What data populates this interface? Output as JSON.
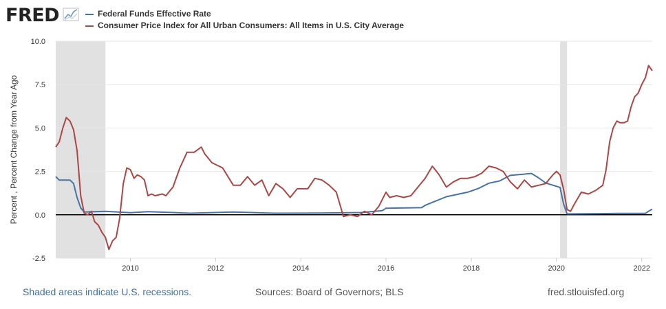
{
  "brand": {
    "logo_text": "FRED",
    "logo_icon": "chart-line-icon"
  },
  "footer": {
    "note": "Shaded areas indicate U.S. recessions.",
    "sources": "Sources: Board of Governors; BLS",
    "site": "fred.stlouisfed.org"
  },
  "colors": {
    "fedfunds": "#4572a7",
    "cpi": "#aa4643",
    "recession": "#e1e1e1",
    "grid": "#e6e6e6",
    "zero_line": "#000000"
  },
  "chart_data": {
    "type": "line",
    "ylabel": "Percent , Percent Change from Year Ago",
    "ylim": [
      -2.5,
      10.0
    ],
    "yticks": [
      "-2.5",
      "0.0",
      "2.5",
      "5.0",
      "7.5",
      "10.0"
    ],
    "xlim": [
      "2008-04-01",
      "2022-04-01"
    ],
    "xticks": [
      "2010",
      "2012",
      "2014",
      "2016",
      "2018",
      "2020",
      "2022"
    ],
    "grid": true,
    "legend": "top-left",
    "recessions": [
      [
        "2008-04-01",
        "2009-06-01"
      ],
      [
        "2020-02-01",
        "2020-04-01"
      ]
    ],
    "series": [
      {
        "name": "Federal Funds Effective Rate",
        "points": [
          [
            "2008-04-01",
            2.2
          ],
          [
            "2008-05-01",
            2.0
          ],
          [
            "2008-08-01",
            2.0
          ],
          [
            "2008-09-01",
            1.8
          ],
          [
            "2008-10-01",
            1.0
          ],
          [
            "2008-11-01",
            0.4
          ],
          [
            "2008-12-01",
            0.16
          ],
          [
            "2009-06-01",
            0.2
          ],
          [
            "2010-01-01",
            0.12
          ],
          [
            "2010-06-01",
            0.18
          ],
          [
            "2011-06-01",
            0.09
          ],
          [
            "2012-06-01",
            0.16
          ],
          [
            "2013-06-01",
            0.09
          ],
          [
            "2014-06-01",
            0.1
          ],
          [
            "2015-06-01",
            0.13
          ],
          [
            "2015-12-01",
            0.24
          ],
          [
            "2016-01-01",
            0.38
          ],
          [
            "2016-11-01",
            0.41
          ],
          [
            "2016-12-01",
            0.54
          ],
          [
            "2017-03-01",
            0.79
          ],
          [
            "2017-06-01",
            1.04
          ],
          [
            "2017-12-01",
            1.3
          ],
          [
            "2018-03-01",
            1.51
          ],
          [
            "2018-06-01",
            1.82
          ],
          [
            "2018-09-01",
            1.95
          ],
          [
            "2018-12-01",
            2.27
          ],
          [
            "2019-06-01",
            2.38
          ],
          [
            "2019-08-01",
            2.13
          ],
          [
            "2019-10-01",
            1.83
          ],
          [
            "2020-02-01",
            1.58
          ],
          [
            "2020-03-01",
            0.65
          ],
          [
            "2020-04-01",
            0.05
          ],
          [
            "2021-03-01",
            0.07
          ],
          [
            "2021-06-01",
            0.08
          ],
          [
            "2022-02-01",
            0.08
          ],
          [
            "2022-03-01",
            0.2
          ],
          [
            "2022-04-01",
            0.33
          ]
        ]
      },
      {
        "name": "Consumer Price Index for All Urban Consumers: All Items in U.S. City Average",
        "points": [
          [
            "2008-04-01",
            3.9
          ],
          [
            "2008-05-01",
            4.2
          ],
          [
            "2008-06-01",
            5.0
          ],
          [
            "2008-07-01",
            5.6
          ],
          [
            "2008-08-01",
            5.4
          ],
          [
            "2008-09-01",
            4.9
          ],
          [
            "2008-10-01",
            3.7
          ],
          [
            "2008-11-01",
            1.1
          ],
          [
            "2008-12-01",
            0.1
          ],
          [
            "2009-01-01",
            0.0
          ],
          [
            "2009-02-01",
            0.2
          ],
          [
            "2009-03-01",
            -0.4
          ],
          [
            "2009-04-01",
            -0.6
          ],
          [
            "2009-05-01",
            -1.0
          ],
          [
            "2009-06-01",
            -1.3
          ],
          [
            "2009-07-01",
            -2.0
          ],
          [
            "2009-08-01",
            -1.5
          ],
          [
            "2009-09-01",
            -1.3
          ],
          [
            "2009-10-01",
            -0.2
          ],
          [
            "2009-11-01",
            1.8
          ],
          [
            "2009-12-01",
            2.7
          ],
          [
            "2010-01-01",
            2.6
          ],
          [
            "2010-02-01",
            2.1
          ],
          [
            "2010-03-01",
            2.3
          ],
          [
            "2010-04-01",
            2.2
          ],
          [
            "2010-05-01",
            2.0
          ],
          [
            "2010-06-01",
            1.1
          ],
          [
            "2010-07-01",
            1.2
          ],
          [
            "2010-08-01",
            1.1
          ],
          [
            "2010-10-01",
            1.2
          ],
          [
            "2010-11-01",
            1.1
          ],
          [
            "2011-01-01",
            1.6
          ],
          [
            "2011-03-01",
            2.7
          ],
          [
            "2011-05-01",
            3.6
          ],
          [
            "2011-07-01",
            3.6
          ],
          [
            "2011-09-01",
            3.9
          ],
          [
            "2011-10-01",
            3.5
          ],
          [
            "2011-12-01",
            3.0
          ],
          [
            "2012-03-01",
            2.7
          ],
          [
            "2012-06-01",
            1.7
          ],
          [
            "2012-08-01",
            1.7
          ],
          [
            "2012-10-01",
            2.2
          ],
          [
            "2012-12-01",
            1.7
          ],
          [
            "2013-02-01",
            2.0
          ],
          [
            "2013-04-01",
            1.1
          ],
          [
            "2013-06-01",
            1.8
          ],
          [
            "2013-08-01",
            1.5
          ],
          [
            "2013-10-01",
            1.0
          ],
          [
            "2013-12-01",
            1.5
          ],
          [
            "2014-03-01",
            1.5
          ],
          [
            "2014-05-01",
            2.1
          ],
          [
            "2014-07-01",
            2.0
          ],
          [
            "2014-09-01",
            1.7
          ],
          [
            "2014-11-01",
            1.3
          ],
          [
            "2015-01-01",
            -0.1
          ],
          [
            "2015-03-01",
            0.0
          ],
          [
            "2015-05-01",
            -0.1
          ],
          [
            "2015-07-01",
            0.2
          ],
          [
            "2015-09-01",
            0.0
          ],
          [
            "2015-11-01",
            0.5
          ],
          [
            "2016-01-01",
            1.3
          ],
          [
            "2016-02-01",
            1.0
          ],
          [
            "2016-04-01",
            1.1
          ],
          [
            "2016-06-01",
            1.0
          ],
          [
            "2016-08-01",
            1.1
          ],
          [
            "2016-10-01",
            1.6
          ],
          [
            "2016-12-01",
            2.1
          ],
          [
            "2017-02-01",
            2.8
          ],
          [
            "2017-04-01",
            2.3
          ],
          [
            "2017-06-01",
            1.6
          ],
          [
            "2017-08-01",
            1.9
          ],
          [
            "2017-10-01",
            2.1
          ],
          [
            "2017-12-01",
            2.1
          ],
          [
            "2018-02-01",
            2.2
          ],
          [
            "2018-04-01",
            2.4
          ],
          [
            "2018-06-01",
            2.8
          ],
          [
            "2018-08-01",
            2.7
          ],
          [
            "2018-10-01",
            2.5
          ],
          [
            "2018-12-01",
            1.9
          ],
          [
            "2019-02-01",
            1.5
          ],
          [
            "2019-04-01",
            2.0
          ],
          [
            "2019-06-01",
            1.6
          ],
          [
            "2019-08-01",
            1.7
          ],
          [
            "2019-10-01",
            1.8
          ],
          [
            "2019-12-01",
            2.3
          ],
          [
            "2020-01-01",
            2.5
          ],
          [
            "2020-02-01",
            2.3
          ],
          [
            "2020-03-01",
            1.5
          ],
          [
            "2020-04-01",
            0.3
          ],
          [
            "2020-05-01",
            0.2
          ],
          [
            "2020-06-01",
            0.6
          ],
          [
            "2020-08-01",
            1.3
          ],
          [
            "2020-10-01",
            1.2
          ],
          [
            "2020-12-01",
            1.4
          ],
          [
            "2021-02-01",
            1.7
          ],
          [
            "2021-03-01",
            2.6
          ],
          [
            "2021-04-01",
            4.2
          ],
          [
            "2021-05-01",
            5.0
          ],
          [
            "2021-06-01",
            5.4
          ],
          [
            "2021-07-01",
            5.3
          ],
          [
            "2021-08-01",
            5.3
          ],
          [
            "2021-09-01",
            5.4
          ],
          [
            "2021-10-01",
            6.2
          ],
          [
            "2021-11-01",
            6.8
          ],
          [
            "2021-12-01",
            7.0
          ],
          [
            "2022-01-01",
            7.5
          ],
          [
            "2022-02-01",
            7.9
          ],
          [
            "2022-03-01",
            8.6
          ],
          [
            "2022-04-01",
            8.3
          ]
        ]
      }
    ]
  }
}
